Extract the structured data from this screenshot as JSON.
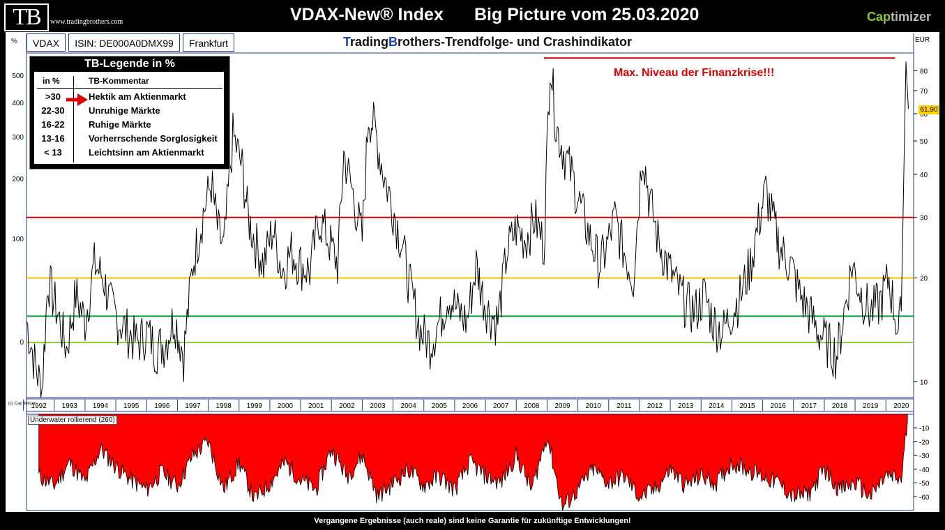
{
  "header": {
    "logo": "TB",
    "site": "www.tradingbrothers.com",
    "title_left": "VDAX-New® Index",
    "title_right": "Big Picture vom 25.03.2020",
    "brand_a": "Cap",
    "brand_b": "timizer"
  },
  "info_bar": {
    "unit_left": "%",
    "symbol": "VDAX",
    "isin": "ISIN: DE000A0DMX99",
    "exchange": "Frankfurt",
    "subtitle_t": "T",
    "subtitle_mid": "rading",
    "subtitle_b": "B",
    "subtitle_rest": "rothers-Trendfolge- und Crashindikator",
    "unit_right": "EUR"
  },
  "legend": {
    "title": "TB-Legende in %",
    "col1": "in %",
    "col2": "TB-Kommentar",
    "rows": [
      {
        "range": ">30",
        "comment": "Hektik am Aktienmarkt"
      },
      {
        "range": "22-30",
        "comment": "Unruhige Märkte"
      },
      {
        "range": "16-22",
        "comment": "Ruhige Märkte"
      },
      {
        "range": "13-16",
        "comment": "Vorherrschende Sorglosigkeit"
      },
      {
        "range": "< 13",
        "comment": "Leichtsinn am Aktienmarkt"
      }
    ]
  },
  "annotation": "Max. Niveau der Finanzkrise!!!",
  "last_price": "61,90",
  "underwater_label": "Underwater rollierend (260)",
  "corner_label": "(c) Cap timizer",
  "footer": "Vergangene Ergebnisse (auch reale) sind keine Garantie für zukünftige Entwicklungen!",
  "colors": {
    "red_line": "#d40000",
    "yellow_line": "#f5c400",
    "green_line": "#00a040",
    "lightgreen_line": "#8dc63f",
    "underwater_fill": "#ff0000",
    "series": "#000000"
  },
  "chart_data": [
    {
      "type": "line",
      "title": "VDAX-New® Index",
      "scale_right": "log",
      "yticks_right": [
        10,
        20,
        30,
        40,
        50,
        60,
        70,
        80
      ],
      "yticks_left": [
        "500",
        "400",
        "300",
        "200",
        "100",
        "0"
      ],
      "x_ticks": [
        "1992",
        "1993",
        "1994",
        "1995",
        "1996",
        "1997",
        "1998",
        "1999",
        "2000",
        "2001",
        "2002",
        "2003",
        "2004",
        "2005",
        "2006",
        "2007",
        "2008",
        "2009",
        "2010",
        "2011",
        "2012",
        "2013",
        "2014",
        "2015",
        "2016",
        "2017",
        "2018",
        "2019",
        "2020"
      ],
      "ylim": [
        9,
        90
      ],
      "xlim": [
        1991.6,
        2020.4
      ],
      "threshold_lines": [
        30,
        20,
        15.5,
        13
      ],
      "max_line_level": 87,
      "series": [
        {
          "x": [
            1991.6,
            1991.9,
            1992.1,
            1992.3,
            1992.6,
            1992.9,
            1993.2,
            1993.5,
            1993.8,
            1994.1,
            1994.3,
            1994.6,
            1994.9,
            1995.2,
            1995.5,
            1995.8,
            1996.1,
            1996.4,
            1996.7,
            1997.0,
            1997.3,
            1997.6,
            1997.8,
            1998.0,
            1998.3,
            1998.6,
            1998.8,
            1999.0,
            1999.3,
            1999.6,
            1999.9,
            2000.2,
            2000.5,
            2000.8,
            2001.1,
            2001.4,
            2001.7,
            2001.9,
            2002.2,
            2002.5,
            2002.7,
            2002.9,
            2003.2,
            2003.5,
            2003.8,
            2004.1,
            2004.4,
            2004.7,
            2005.0,
            2005.3,
            2005.6,
            2005.9,
            2006.2,
            2006.4,
            2006.6,
            2006.9,
            2007.2,
            2007.5,
            2007.8,
            2008.1,
            2008.4,
            2008.6,
            2008.8,
            2009.0,
            2009.3,
            2009.6,
            2009.9,
            2010.2,
            2010.4,
            2010.7,
            2011.0,
            2011.3,
            2011.6,
            2011.8,
            2012.1,
            2012.4,
            2012.7,
            2013.0,
            2013.3,
            2013.6,
            2013.9,
            2014.2,
            2014.5,
            2014.8,
            2015.1,
            2015.4,
            2015.6,
            2015.9,
            2016.1,
            2016.4,
            2016.7,
            2017.0,
            2017.3,
            2017.6,
            2017.9,
            2018.1,
            2018.4,
            2018.7,
            2019.0,
            2019.3,
            2019.6,
            2019.9,
            2020.0,
            2020.15,
            2020.23
          ],
          "values": [
            15,
            11,
            9.5,
            20,
            16,
            12.5,
            18,
            15,
            22,
            20,
            17,
            15,
            14,
            13,
            14,
            12.5,
            13,
            15.5,
            12,
            22,
            30,
            38,
            28,
            24,
            52,
            42,
            30,
            26,
            22,
            28,
            21,
            24,
            22,
            21,
            30,
            26,
            22,
            46,
            35,
            26,
            60,
            55,
            40,
            32,
            25,
            18,
            14,
            13,
            15,
            18,
            16,
            15,
            22,
            18,
            16,
            15,
            24,
            28,
            26,
            30,
            25,
            88,
            55,
            48,
            40,
            32,
            26,
            22,
            24,
            30,
            24,
            20,
            48,
            35,
            26,
            22,
            19,
            17,
            16,
            18,
            15,
            14,
            16,
            18,
            22,
            30,
            36,
            28,
            24,
            22,
            18,
            16,
            14,
            13,
            12,
            15,
            22,
            18,
            16,
            17,
            20,
            14,
            16,
            85,
            61.9
          ]
        }
      ]
    },
    {
      "type": "area",
      "title": "Underwater rollierend (260)",
      "yticks": [
        -10,
        -20,
        -30,
        -40,
        -50,
        -60
      ],
      "ylim": [
        -70,
        0
      ],
      "series": [
        {
          "x": [
            1992.0,
            1992.5,
            1993.0,
            1993.5,
            1994.0,
            1994.5,
            1995.0,
            1995.5,
            1996.0,
            1996.5,
            1997.0,
            1997.5,
            1998.0,
            1998.5,
            1999.0,
            1999.5,
            2000.0,
            2000.5,
            2001.0,
            2001.5,
            2002.0,
            2002.5,
            2003.0,
            2003.5,
            2004.0,
            2004.5,
            2005.0,
            2005.5,
            2006.0,
            2006.5,
            2007.0,
            2007.5,
            2008.0,
            2008.5,
            2009.0,
            2009.5,
            2010.0,
            2010.5,
            2011.0,
            2011.5,
            2012.0,
            2012.5,
            2013.0,
            2013.5,
            2014.0,
            2014.5,
            2015.0,
            2015.5,
            2016.0,
            2016.5,
            2017.0,
            2017.5,
            2018.0,
            2018.5,
            2019.0,
            2019.5,
            2020.0,
            2020.2
          ],
          "values": [
            -45,
            -52,
            -35,
            -50,
            -25,
            -38,
            -48,
            -55,
            -42,
            -52,
            -30,
            -20,
            -55,
            -35,
            -62,
            -50,
            -35,
            -48,
            -55,
            -25,
            -45,
            -30,
            -60,
            -50,
            -40,
            -52,
            -45,
            -55,
            -35,
            -45,
            -50,
            -30,
            -55,
            -15,
            -68,
            -55,
            -40,
            -50,
            -45,
            -60,
            -55,
            -40,
            -52,
            -45,
            -50,
            -35,
            -40,
            -45,
            -50,
            -60,
            -58,
            -40,
            -55,
            -50,
            -60,
            -45,
            -48,
            -5
          ]
        }
      ]
    }
  ]
}
